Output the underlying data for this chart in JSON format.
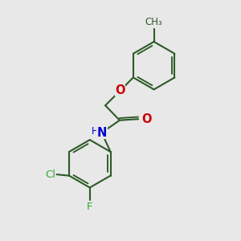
{
  "bg_color": "#e8e8e8",
  "bond_color": "#2d5a27",
  "O_color": "#cc0000",
  "N_color": "#0000cc",
  "Cl_color": "#33aa33",
  "F_color": "#33aa33",
  "lw": 1.5,
  "fs": 9.5,
  "xlim": [
    0,
    10
  ],
  "ylim": [
    0,
    10
  ]
}
